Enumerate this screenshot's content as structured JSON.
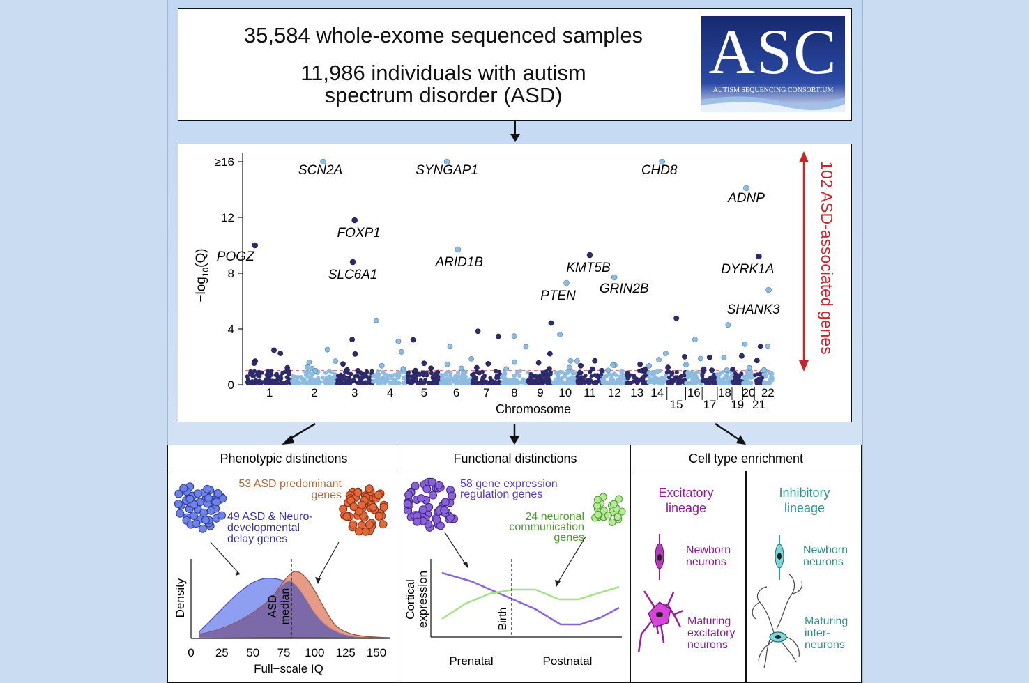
{
  "header": {
    "line1": "35,584 whole-exome sequenced samples",
    "line2a": "11,986 individuals with autism",
    "line2b": "spectrum disorder (ASD)"
  },
  "logo": {
    "letters": "ASC",
    "subtitle": "AUTISM SEQUENCING CONSORTIUM"
  },
  "manhattan": {
    "ylabel_main": "−log",
    "ylabel_sub": "10",
    "ylabel_tail": "(Q)",
    "yticks": [
      "0",
      "4",
      "8",
      "12",
      "≥16"
    ],
    "xlabel": "Chromosome",
    "side_label": "102 ASD-associated genes",
    "chromosomes": [
      "1",
      "2",
      "3",
      "4",
      "5",
      "6",
      "7",
      "8",
      "9",
      "10",
      "11",
      "12",
      "13",
      "14",
      "15",
      "16",
      "17",
      "18",
      "19",
      "20",
      "21",
      "22"
    ]
  },
  "chart_data": {
    "type": "scatter",
    "xlabel": "Chromosome",
    "ylabel": "−log10(Q)",
    "ylim": [
      0,
      16
    ],
    "threshold": 1,
    "labeled_genes": [
      {
        "gene": "SCN2A",
        "chrom": "2",
        "value": 16
      },
      {
        "gene": "SYNGAP1",
        "chrom": "6",
        "value": 16
      },
      {
        "gene": "CHD8",
        "chrom": "14",
        "value": 16
      },
      {
        "gene": "ADNP",
        "chrom": "20",
        "value": 14.1
      },
      {
        "gene": "FOXP1",
        "chrom": "3",
        "value": 11.8
      },
      {
        "gene": "POGZ",
        "chrom": "1",
        "value": 10
      },
      {
        "gene": "ARID1B",
        "chrom": "6",
        "value": 9.7
      },
      {
        "gene": "KMT5B",
        "chrom": "11",
        "value": 9.3
      },
      {
        "gene": "DYRK1A",
        "chrom": "21",
        "value": 9.2
      },
      {
        "gene": "SLC6A1",
        "chrom": "3",
        "value": 8.8
      },
      {
        "gene": "GRIN2B",
        "chrom": "12",
        "value": 7.7
      },
      {
        "gene": "PTEN",
        "chrom": "10",
        "value": 7.3
      },
      {
        "gene": "SHANK3",
        "chrom": "22",
        "value": 6.8
      }
    ]
  },
  "sections": {
    "phenotypic": {
      "title": "Phenotypic distinctions",
      "label_orange_a": "53 ASD predominant",
      "label_orange_b": "genes",
      "label_blue_a": "49 ASD & Neuro-",
      "label_blue_b": "developmental",
      "label_blue_c": "delay genes",
      "ylabel": "Density",
      "median_a": "ASD",
      "median_b": "median",
      "xticks": [
        "0",
        "25",
        "50",
        "75",
        "100",
        "125",
        "150"
      ],
      "xlabel": "Full−scale IQ"
    },
    "functional": {
      "title": "Functional distinctions",
      "label_purple_a": "58 gene expression",
      "label_purple_b": "regulation genes",
      "label_green_a": "24 neuronal",
      "label_green_b": "communication",
      "label_green_c": "genes",
      "ylabel_a": "Cortical",
      "ylabel_b": "expression",
      "birth": "Birth",
      "prenatal": "Prenatal",
      "postnatal": "Postnatal"
    },
    "celltype": {
      "title": "Cell type enrichment",
      "excit_a": "Excitatory",
      "excit_b": "lineage",
      "inhib_a": "Inhibitory",
      "inhib_b": "lineage",
      "newborn_a": "Newborn",
      "newborn_b": "neurons",
      "mat_ex_a": "Maturing",
      "mat_ex_b": "excitatory",
      "mat_ex_c": "neurons",
      "newborn2_a": "Newborn",
      "newborn2_b": "neurons",
      "mat_in_a": "Maturing",
      "mat_in_b": "inter-",
      "mat_in_c": "neurons"
    }
  },
  "colors": {
    "dark": "#2e2a6b",
    "light": "#8ebbe0",
    "red": "#c0282d",
    "blue": "#5b73d8",
    "orange": "#d9582d",
    "purple": "#7a55c7",
    "green": "#8ad36a",
    "magenta": "#9a1e9c",
    "teal": "#2f9a9c"
  }
}
